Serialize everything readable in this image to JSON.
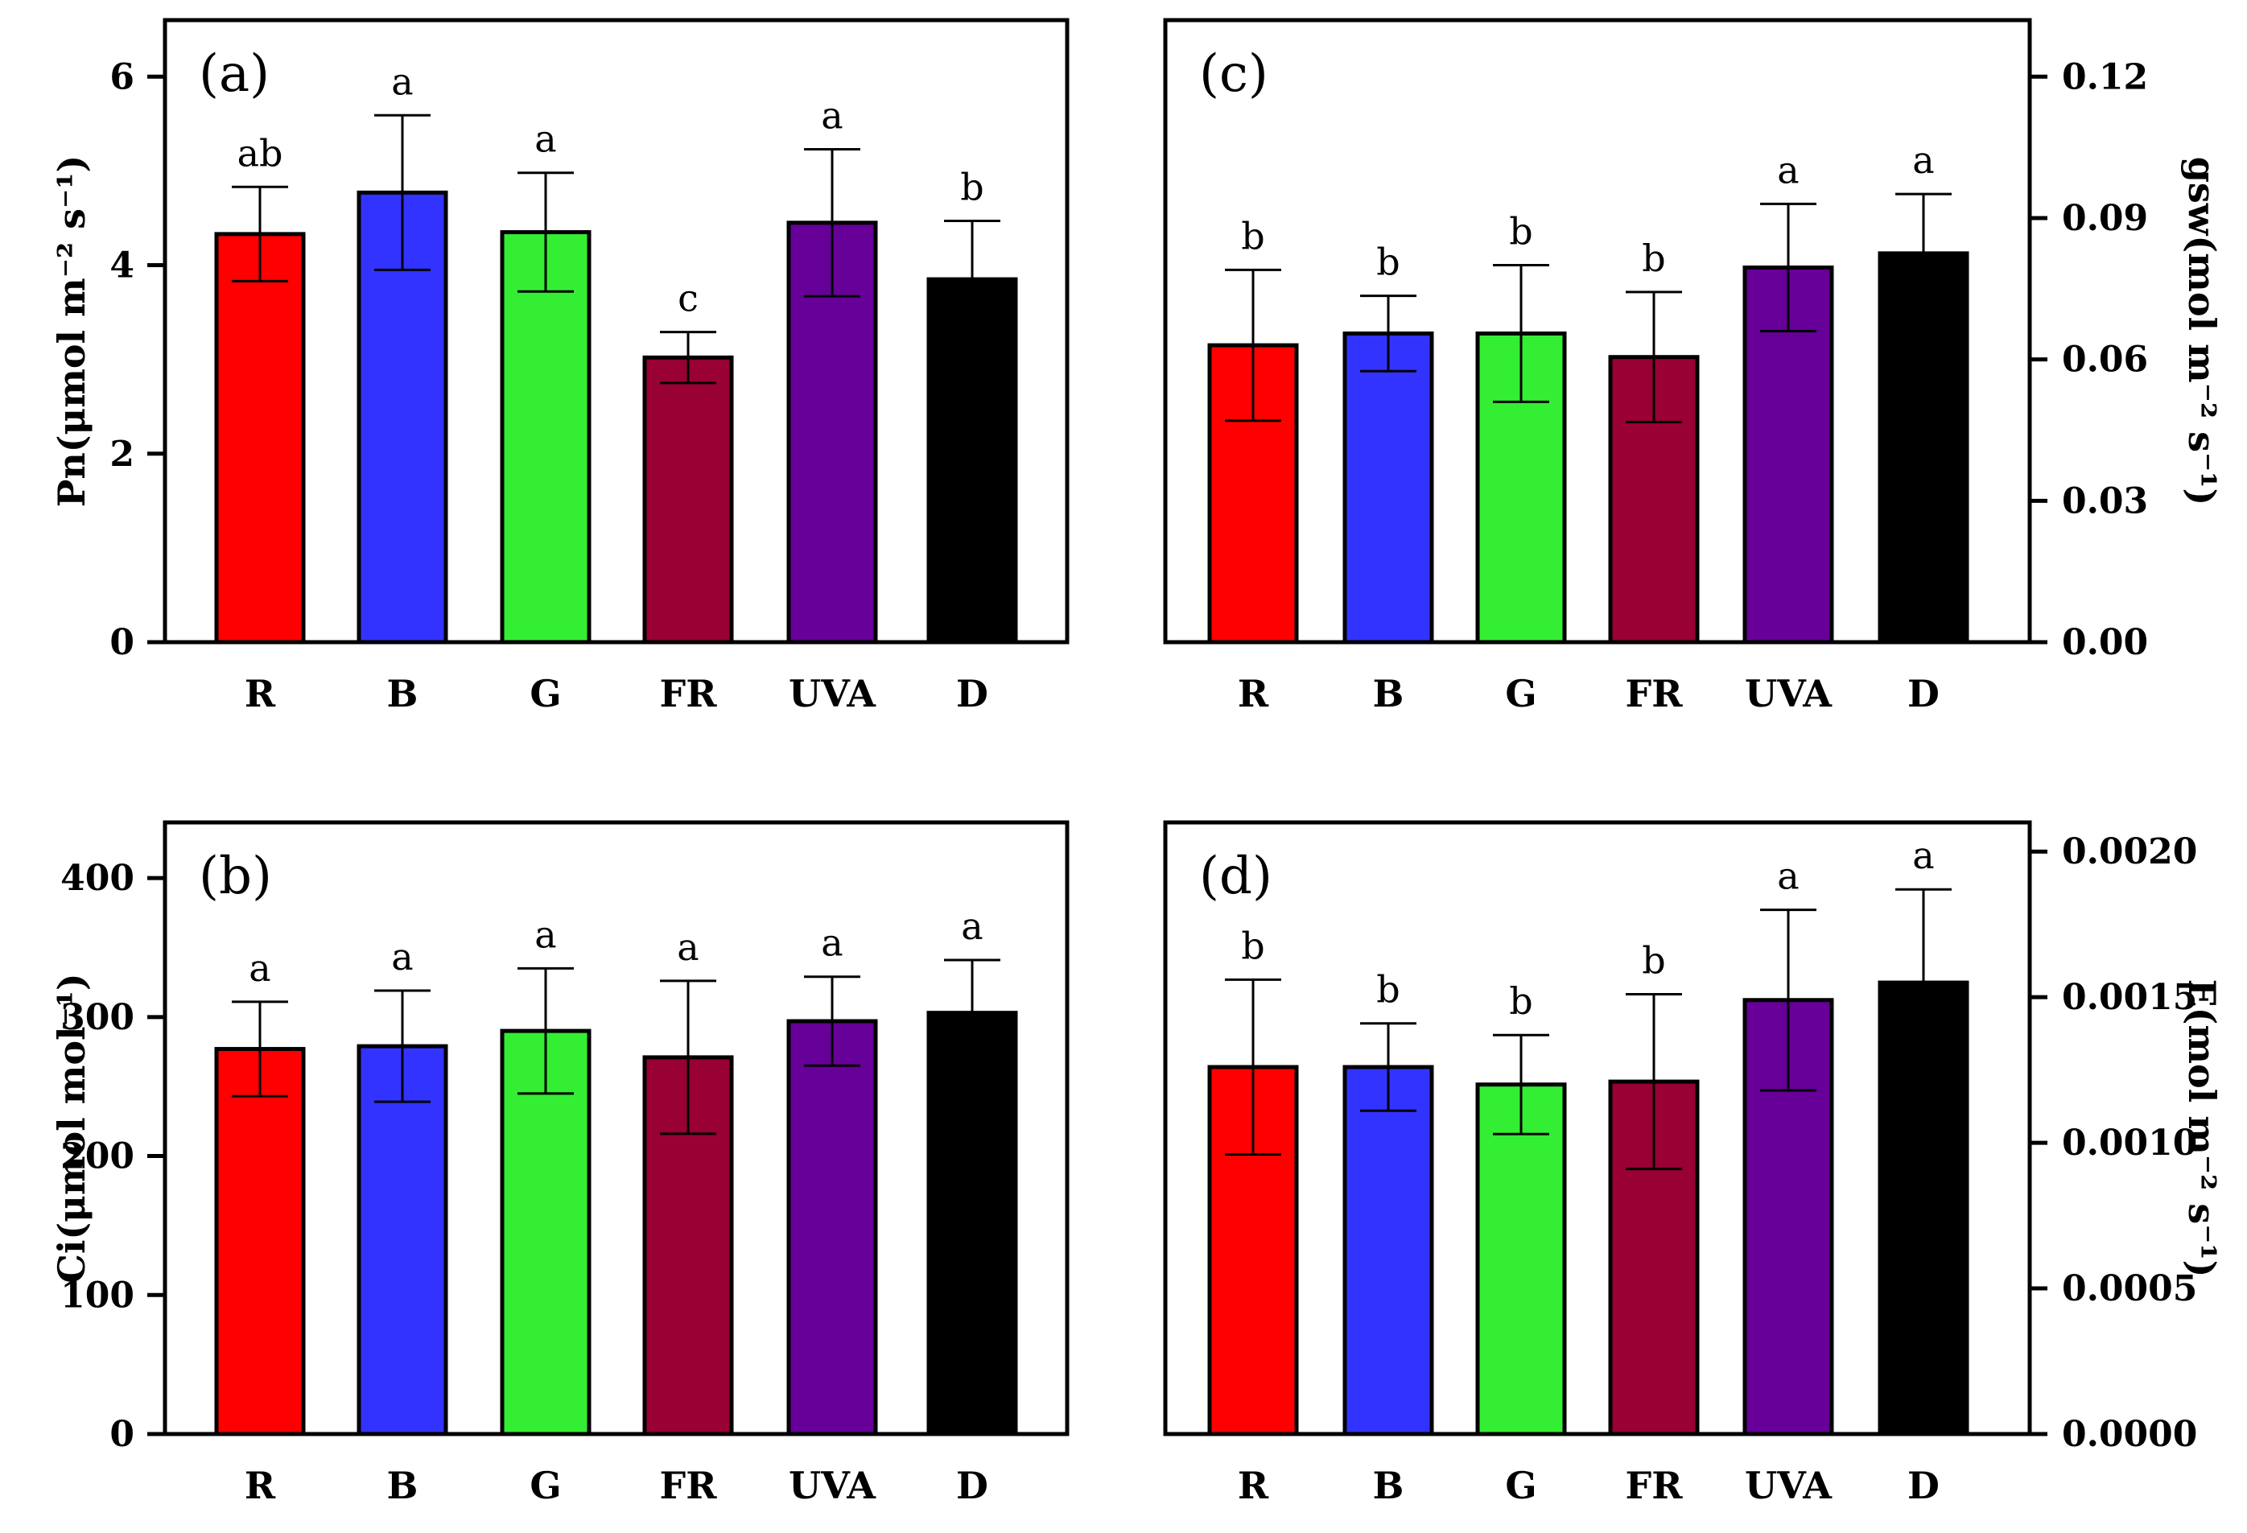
{
  "chart_data": [
    {
      "type": "bar",
      "panel_label": "(a)",
      "ylabel": "Pn(μmol m⁻² s⁻¹)",
      "y_axis_side": "left",
      "ylim": [
        0,
        6.6
      ],
      "yticks": [
        0,
        2,
        4,
        6
      ],
      "ytick_labels": [
        "0",
        "2",
        "4",
        "6"
      ],
      "categories": [
        "R",
        "B",
        "G",
        "FR",
        "UVA",
        "D"
      ],
      "colors": [
        "#ff0000",
        "#3333ff",
        "#33ee33",
        "#990033",
        "#660099",
        "#000000"
      ],
      "values": [
        4.33,
        4.77,
        4.35,
        3.02,
        4.45,
        3.85
      ],
      "errors": [
        0.5,
        0.82,
        0.63,
        0.27,
        0.78,
        0.62
      ],
      "sig": [
        "ab",
        "a",
        "a",
        "c",
        "a",
        "b"
      ]
    },
    {
      "type": "bar",
      "panel_label": "(b)",
      "ylabel": "Ci(μmol mol⁻¹)",
      "y_axis_side": "left",
      "ylim": [
        0,
        440
      ],
      "yticks": [
        0,
        100,
        200,
        300,
        400
      ],
      "ytick_labels": [
        "0",
        "100",
        "200",
        "300",
        "400"
      ],
      "categories": [
        "R",
        "B",
        "G",
        "FR",
        "UVA",
        "D"
      ],
      "colors": [
        "#ff0000",
        "#3333ff",
        "#33ee33",
        "#990033",
        "#660099",
        "#000000"
      ],
      "values": [
        277,
        279,
        290,
        271,
        297,
        303
      ],
      "errors": [
        34,
        40,
        45,
        55,
        32,
        38
      ],
      "sig": [
        "a",
        "a",
        "a",
        "a",
        "a",
        "a"
      ]
    },
    {
      "type": "bar",
      "panel_label": "(c)",
      "ylabel": "gsw(mol m⁻² s⁻¹)",
      "y_axis_side": "right",
      "ylim": [
        0,
        0.132
      ],
      "yticks": [
        0,
        0.03,
        0.06,
        0.09,
        0.12
      ],
      "ytick_labels": [
        "0.00",
        "0.03",
        "0.06",
        "0.09",
        "0.12"
      ],
      "categories": [
        "R",
        "B",
        "G",
        "FR",
        "UVA",
        "D"
      ],
      "colors": [
        "#ff0000",
        "#3333ff",
        "#33ee33",
        "#990033",
        "#660099",
        "#000000"
      ],
      "values": [
        0.063,
        0.0655,
        0.0655,
        0.0605,
        0.0795,
        0.0825
      ],
      "errors": [
        0.016,
        0.008,
        0.0145,
        0.0138,
        0.0135,
        0.0126
      ],
      "sig": [
        "b",
        "b",
        "b",
        "b",
        "a",
        "a"
      ]
    },
    {
      "type": "bar",
      "panel_label": "(d)",
      "ylabel": "E(mol m⁻² s⁻¹)",
      "y_axis_side": "right",
      "ylim": [
        0,
        0.0021
      ],
      "yticks": [
        0,
        0.0005,
        0.001,
        0.0015,
        0.002
      ],
      "ytick_labels": [
        "0.0000",
        "0.0005",
        "0.0010",
        "0.0015",
        "0.0020"
      ],
      "categories": [
        "R",
        "B",
        "G",
        "FR",
        "UVA",
        "D"
      ],
      "colors": [
        "#ff0000",
        "#3333ff",
        "#33ee33",
        "#990033",
        "#660099",
        "#000000"
      ],
      "values": [
        0.00126,
        0.00126,
        0.0012,
        0.00121,
        0.00149,
        0.00155
      ],
      "errors": [
        0.0003,
        0.00015,
        0.00017,
        0.0003,
        0.00031,
        0.00032
      ],
      "sig": [
        "b",
        "b",
        "b",
        "b",
        "a",
        "a"
      ]
    }
  ]
}
